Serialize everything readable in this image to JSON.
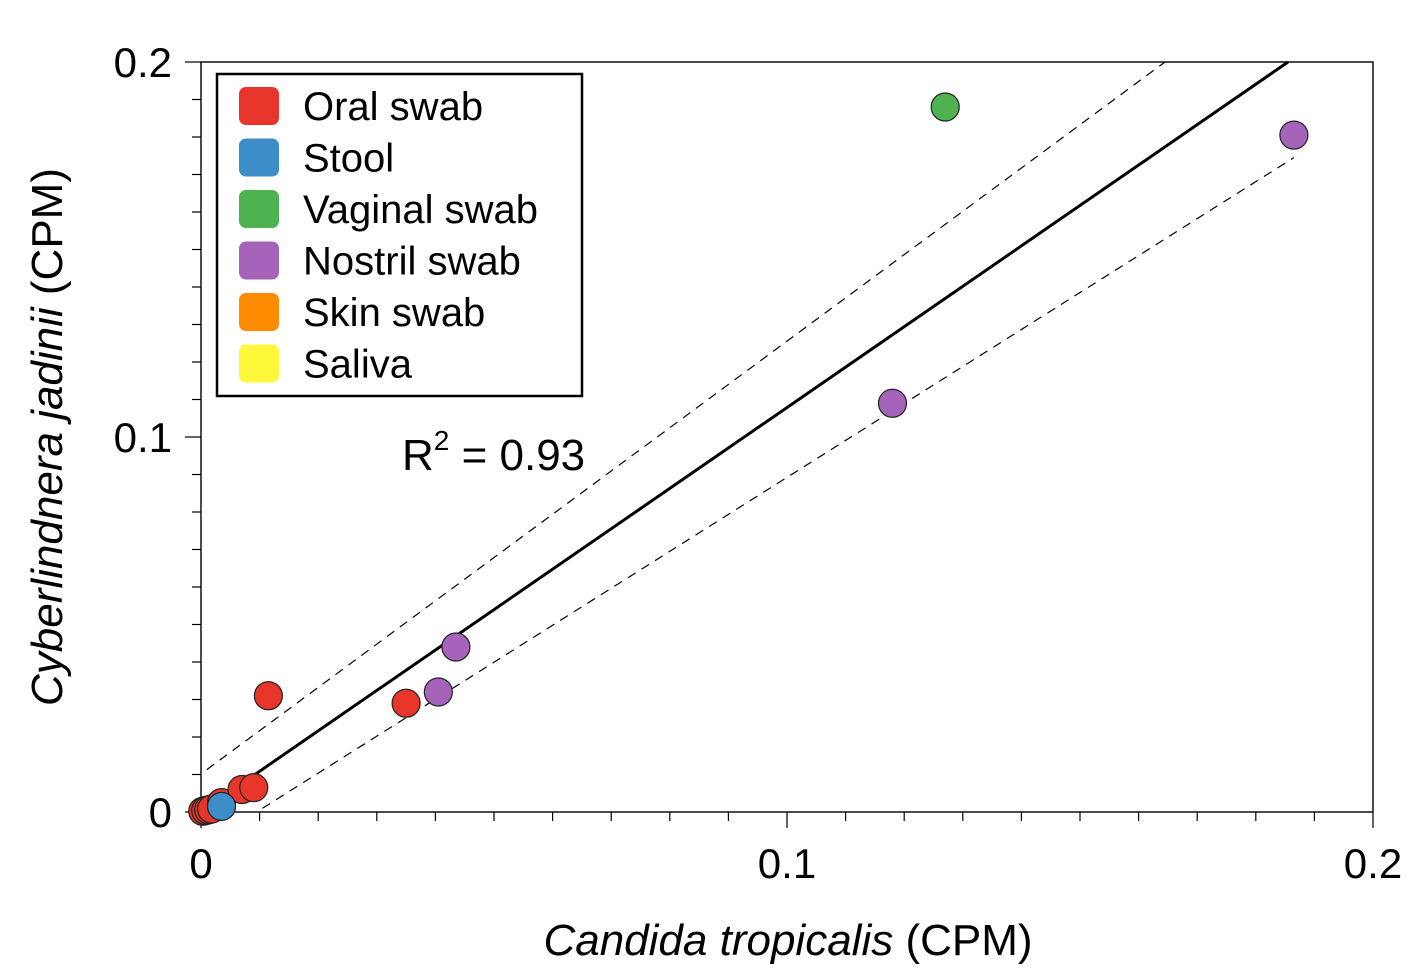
{
  "chart_data": {
    "type": "scatter",
    "title": "",
    "xlabel": {
      "italic": "Candida tropicalis",
      "plain": " (CPM)"
    },
    "ylabel": {
      "italic": "Cyberlindnera jadinii",
      "plain": " (CPM)"
    },
    "xlim": [
      0,
      0.2
    ],
    "ylim": [
      0,
      0.2
    ],
    "x_ticks": [
      {
        "value": 0,
        "label": "0"
      },
      {
        "value": 0.1,
        "label": "0.1"
      },
      {
        "value": 0.2,
        "label": "0.2"
      }
    ],
    "y_ticks": [
      {
        "value": 0,
        "label": "0"
      },
      {
        "value": 0.1,
        "label": "0.1"
      },
      {
        "value": 0.2,
        "label": "0.2"
      }
    ],
    "minor_tick_step": 0.01,
    "grid": false,
    "legend_position": "top-left",
    "series": [
      {
        "name": "Oral swab",
        "color": "#E8352A",
        "points": [
          {
            "x": 0.0003,
            "y": 0.0002
          },
          {
            "x": 0.0008,
            "y": 0.0004
          },
          {
            "x": 0.0013,
            "y": 0.0006
          },
          {
            "x": 0.0018,
            "y": 0.0008
          },
          {
            "x": 0.0035,
            "y": 0.0025
          },
          {
            "x": 0.007,
            "y": 0.006
          },
          {
            "x": 0.009,
            "y": 0.0065
          },
          {
            "x": 0.0115,
            "y": 0.031
          },
          {
            "x": 0.035,
            "y": 0.029
          }
        ]
      },
      {
        "name": "Stool",
        "color": "#3C8DC8",
        "points": [
          {
            "x": 0.0035,
            "y": 0.0015
          }
        ]
      },
      {
        "name": "Vaginal swab",
        "color": "#4DB24F",
        "points": [
          {
            "x": 0.127,
            "y": 0.188
          }
        ]
      },
      {
        "name": "Nostril swab",
        "color": "#A563BA",
        "points": [
          {
            "x": 0.0405,
            "y": 0.032
          },
          {
            "x": 0.0435,
            "y": 0.044
          },
          {
            "x": 0.118,
            "y": 0.109
          },
          {
            "x": 0.1865,
            "y": 0.1805
          }
        ]
      },
      {
        "name": "Skin swab",
        "color": "#FF8C00",
        "points": []
      },
      {
        "name": "Saliva",
        "color": "#FFF73A",
        "points": []
      }
    ],
    "fit_line": {
      "x0": 0.0015,
      "y0": 0.0017,
      "x1": 0.1855,
      "y1": 0.2
    },
    "confidence_upper": {
      "x0": 0.001,
      "y0": 0.0113,
      "x1": 0.1645,
      "y1": 0.2
    },
    "confidence_lower": {
      "x0": 0.0105,
      "y0": 0.001,
      "x1": 0.1865,
      "y1": 0.1745
    },
    "annotation": {
      "base": "R",
      "sup": "2",
      "rest": " = 0.93"
    }
  }
}
